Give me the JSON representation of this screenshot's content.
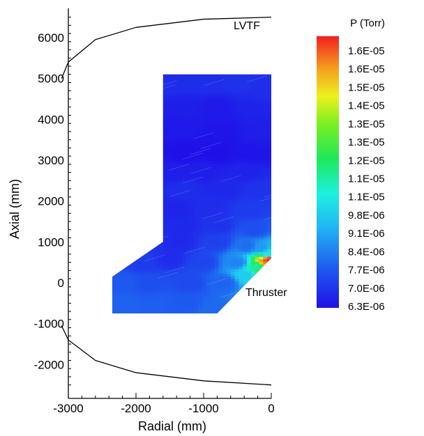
{
  "chart_data": {
    "type": "heatmap",
    "title": "",
    "xlabel": "Radial (mm)",
    "ylabel": "Axial (mm)",
    "xlim": [
      -3000,
      0
    ],
    "ylim": [
      -2500,
      6500
    ],
    "x_ticks": [
      -3000,
      -2000,
      -1000,
      0
    ],
    "x_tick_labels": [
      "-3000",
      "-2000",
      "-1000",
      "0"
    ],
    "y_ticks": [
      -2000,
      -1000,
      0,
      1000,
      2000,
      3000,
      4000,
      5000,
      6000
    ],
    "y_tick_labels": [
      "-2000",
      "-1000",
      "0",
      "1000",
      "2000",
      "3000",
      "4000",
      "5000",
      "6000"
    ],
    "colorbar": {
      "title": "P  (Torr)",
      "levels": [
        "1.6E-05",
        "1.6E-05",
        "1.5E-05",
        "1.4E-05",
        "1.3E-05",
        "1.3E-05",
        "1.2E-05",
        "1.1E-05",
        "1.1E-05",
        "9.8E-06",
        "9.1E-06",
        "8.4E-06",
        "7.7E-06",
        "7.0E-06",
        "6.3E-06"
      ],
      "min": 6.3e-06,
      "max": 1.7e-05
    },
    "annotations": {
      "chamber": "LVTF",
      "thruster": "Thruster"
    },
    "chamber_wall": {
      "top": [
        [
          -3100,
          5000
        ],
        [
          -3000,
          5400
        ],
        [
          -2600,
          5950
        ],
        [
          -2000,
          6250
        ],
        [
          -1000,
          6450
        ],
        [
          0,
          6500
        ]
      ],
      "bottom": [
        [
          -3100,
          -1050
        ],
        [
          -3000,
          -1400
        ],
        [
          -2600,
          -1900
        ],
        [
          -2000,
          -2200
        ],
        [
          -1000,
          -2400
        ],
        [
          0,
          -2500
        ]
      ]
    },
    "domain": [
      [
        -1600,
        5100
      ],
      [
        0,
        5100
      ],
      [
        0,
        600
      ],
      [
        -800,
        -750
      ],
      [
        -2350,
        -750
      ],
      [
        -2350,
        150
      ],
      [
        -1600,
        1000
      ]
    ],
    "pressure_samples": [
      [
        -1450,
        4900,
        6.9e-06
      ],
      [
        -1000,
        4900,
        6.9e-06
      ],
      [
        -450,
        4900,
        7e-06
      ],
      [
        -150,
        4700,
        6.9e-06
      ],
      [
        -1300,
        4300,
        6.6e-06
      ],
      [
        -800,
        4300,
        6.5e-06
      ],
      [
        -300,
        4300,
        6.7e-06
      ],
      [
        -1400,
        3800,
        6.5e-06
      ],
      [
        -700,
        3700,
        6.4e-06
      ],
      [
        -200,
        3700,
        6.6e-06
      ],
      [
        -1300,
        3200,
        6.3e-06
      ],
      [
        -800,
        3200,
        6.3e-06
      ],
      [
        -300,
        3200,
        6.4e-06
      ],
      [
        -1450,
        2700,
        6.6e-06
      ],
      [
        -1000,
        2700,
        6.6e-06
      ],
      [
        -400,
        2700,
        6.7e-06
      ],
      [
        -1300,
        2300,
        6.9e-06
      ],
      [
        -700,
        2300,
        6.8e-06
      ],
      [
        -200,
        2300,
        7e-06
      ],
      [
        -1400,
        1800,
        6.7e-06
      ],
      [
        -900,
        1800,
        6.9e-06
      ],
      [
        -300,
        1800,
        7.2e-06
      ],
      [
        -1300,
        1400,
        6.8e-06
      ],
      [
        -800,
        1400,
        7e-06
      ],
      [
        -250,
        1300,
        7.6e-06
      ],
      [
        -1350,
        1000,
        6.8e-06
      ],
      [
        -800,
        1000,
        7.3e-06
      ],
      [
        -350,
        900,
        8.2e-06
      ],
      [
        -150,
        850,
        9e-06
      ],
      [
        -50,
        700,
        1.05e-05
      ],
      [
        -1900,
        500,
        7.2e-06
      ],
      [
        -1500,
        600,
        6.9e-06
      ],
      [
        -1000,
        500,
        7.4e-06
      ],
      [
        -500,
        500,
        8.6e-06
      ],
      [
        -200,
        400,
        1.15e-05
      ],
      [
        -80,
        500,
        1.6e-05
      ],
      [
        -40,
        560,
        1.72e-05
      ],
      [
        -150,
        250,
        1.25e-05
      ],
      [
        -350,
        200,
        1e-05
      ],
      [
        -2200,
        0,
        7.8e-06
      ],
      [
        -1800,
        0,
        7.6e-06
      ],
      [
        -1200,
        0,
        7.5e-06
      ],
      [
        -700,
        0,
        8e-06
      ],
      [
        -2200,
        -500,
        8e-06
      ],
      [
        -1700,
        -500,
        7.9e-06
      ],
      [
        -1200,
        -500,
        7.8e-06
      ],
      [
        -900,
        -600,
        8.1e-06
      ]
    ]
  }
}
